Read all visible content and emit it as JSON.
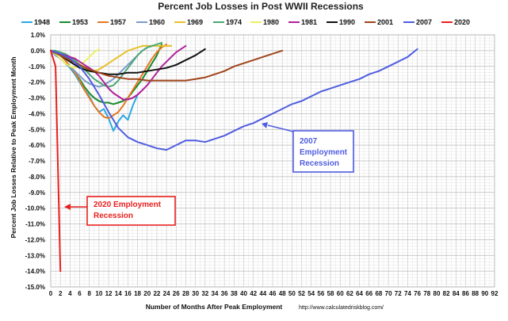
{
  "chart_data": {
    "type": "line",
    "title": "Percent Job Losses in Post WWII Recessions",
    "xlabel": "Number of Months After Peak Employment",
    "ylabel": "Percent Job Losses Relative to Peak Employment Month",
    "source_note": "http://www.calculatedriskblog.com/",
    "xlim": [
      0,
      92
    ],
    "ylim": [
      -15,
      1
    ],
    "x_ticks": [
      "0",
      "2",
      "4",
      "6",
      "8",
      "10",
      "12",
      "14",
      "16",
      "18",
      "20",
      "22",
      "24",
      "26",
      "28",
      "30",
      "32",
      "34",
      "36",
      "38",
      "40",
      "42",
      "44",
      "46",
      "48",
      "50",
      "52",
      "54",
      "56",
      "58",
      "60",
      "62",
      "64",
      "66",
      "68",
      "70",
      "72",
      "74",
      "76",
      "78",
      "80",
      "82",
      "84",
      "86",
      "88",
      "90",
      "92"
    ],
    "y_ticks": [
      {
        "value": 1,
        "label": "1.0%"
      },
      {
        "value": 0,
        "label": "0.0%"
      },
      {
        "value": -1,
        "label": "-1.0%"
      },
      {
        "value": -2,
        "label": "-2.0%"
      },
      {
        "value": -3,
        "label": "-3.0%"
      },
      {
        "value": -4,
        "label": "-4.0%"
      },
      {
        "value": -5,
        "label": "-5.0%"
      },
      {
        "value": -6,
        "label": "-6.0%"
      },
      {
        "value": -7,
        "label": "-7.0%"
      },
      {
        "value": -8,
        "label": "-8.0%"
      },
      {
        "value": -9,
        "label": "-9.0%"
      },
      {
        "value": -10,
        "label": "-10.0%"
      },
      {
        "value": -11,
        "label": "-11.0%"
      },
      {
        "value": -12,
        "label": "-12.0%"
      },
      {
        "value": -13,
        "label": "-13.0%"
      },
      {
        "value": -14,
        "label": "-14.0%"
      },
      {
        "value": -15,
        "label": "-15.0%"
      }
    ],
    "grid": true,
    "legend_position": "top",
    "series": [
      {
        "name": "1948",
        "color": "#2aa8e0",
        "x": [
          0,
          1,
          2,
          3,
          4,
          5,
          6,
          7,
          8,
          9,
          10,
          11,
          12,
          13,
          14,
          15,
          16,
          17,
          18
        ],
        "y": [
          0,
          -0.3,
          -0.5,
          -0.8,
          -1.1,
          -1.5,
          -2.0,
          -2.5,
          -2.9,
          -3.5,
          -3.9,
          -3.7,
          -4.3,
          -5.1,
          -4.5,
          -4.1,
          -4.4,
          -3.5,
          -2.8
        ]
      },
      {
        "name": "1953",
        "color": "#1a8a2e",
        "x": [
          0,
          1,
          2,
          3,
          4,
          5,
          6,
          7,
          8,
          9,
          10,
          11,
          12,
          13,
          14,
          15,
          16,
          17,
          18,
          19,
          20,
          21,
          22,
          23
        ],
        "y": [
          0,
          -0.1,
          -0.3,
          -0.6,
          -1.0,
          -1.4,
          -1.8,
          -2.3,
          -2.7,
          -3.0,
          -3.2,
          -3.3,
          -3.3,
          -3.4,
          -3.3,
          -3.2,
          -3.0,
          -2.6,
          -2.2,
          -1.8,
          -1.3,
          -0.8,
          -0.3,
          0.4
        ]
      },
      {
        "name": "1957",
        "color": "#e87722",
        "x": [
          0,
          1,
          2,
          3,
          4,
          5,
          6,
          7,
          8,
          9,
          10,
          11,
          12,
          13,
          14,
          15,
          16,
          17,
          18,
          19,
          20,
          21,
          22,
          23,
          24
        ],
        "y": [
          0,
          -0.1,
          -0.3,
          -0.6,
          -1.0,
          -1.4,
          -1.9,
          -2.5,
          -3.0,
          -3.5,
          -3.9,
          -4.2,
          -4.3,
          -4.1,
          -3.9,
          -3.5,
          -3.0,
          -2.5,
          -2.0,
          -1.5,
          -1.0,
          -0.5,
          -0.1,
          0.2,
          0.4
        ]
      },
      {
        "name": "1960",
        "color": "#7a9bc8",
        "x": [
          0,
          1,
          2,
          3,
          4,
          5,
          6,
          7,
          8,
          9,
          10,
          11,
          12,
          13,
          14,
          15,
          16,
          17,
          18,
          19,
          20,
          21
        ],
        "y": [
          0,
          -0.3,
          -0.5,
          -0.8,
          -1.0,
          -1.3,
          -1.6,
          -1.9,
          -2.1,
          -2.2,
          -2.3,
          -2.2,
          -2.0,
          -1.8,
          -1.5,
          -1.2,
          -0.9,
          -0.6,
          -0.3,
          0.0,
          0.2,
          0.3
        ]
      },
      {
        "name": "1969",
        "color": "#e8c02a",
        "x": [
          0,
          1,
          2,
          3,
          4,
          5,
          6,
          7,
          8,
          9,
          10,
          11,
          12,
          13,
          14,
          15,
          16,
          17,
          18,
          19,
          20,
          21,
          22,
          23,
          24,
          25
        ],
        "y": [
          0,
          -0.1,
          -0.2,
          -0.3,
          -0.5,
          -0.7,
          -0.9,
          -1.1,
          -1.2,
          -1.3,
          -1.2,
          -1.0,
          -0.8,
          -0.6,
          -0.4,
          -0.2,
          0.0,
          0.1,
          0.2,
          0.3,
          0.3,
          0.3,
          0.3,
          0.3,
          0.3,
          0.3
        ]
      },
      {
        "name": "1974",
        "color": "#4aa873",
        "x": [
          0,
          1,
          2,
          3,
          4,
          5,
          6,
          7,
          8,
          9,
          10,
          11,
          12,
          13,
          14,
          15,
          16,
          17,
          18,
          19,
          20,
          21,
          22,
          23
        ],
        "y": [
          0,
          0,
          -0.1,
          -0.2,
          -0.4,
          -0.6,
          -0.9,
          -1.2,
          -1.5,
          -1.8,
          -2.0,
          -2.2,
          -2.3,
          -2.2,
          -1.9,
          -1.5,
          -1.1,
          -0.7,
          -0.3,
          0.0,
          0.2,
          0.3,
          0.4,
          0.5
        ]
      },
      {
        "name": "1980",
        "color": "#f0f060",
        "x": [
          0,
          1,
          2,
          3,
          4,
          5,
          6,
          7,
          8,
          9,
          10
        ],
        "y": [
          0,
          -0.2,
          -0.5,
          -0.8,
          -1.0,
          -1.1,
          -0.9,
          -0.7,
          -0.4,
          -0.1,
          0.1
        ]
      },
      {
        "name": "1981",
        "color": "#b0209b",
        "x": [
          0,
          1,
          2,
          3,
          4,
          5,
          6,
          7,
          8,
          9,
          10,
          11,
          12,
          13,
          14,
          15,
          16,
          17,
          18,
          19,
          20,
          21,
          22,
          23,
          24,
          25,
          26,
          27,
          28
        ],
        "y": [
          0,
          -0.1,
          -0.2,
          -0.3,
          -0.4,
          -0.5,
          -0.7,
          -0.9,
          -1.1,
          -1.3,
          -1.6,
          -2.0,
          -2.4,
          -2.7,
          -2.9,
          -3.1,
          -3.1,
          -3.0,
          -2.8,
          -2.5,
          -2.2,
          -1.8,
          -1.4,
          -1.0,
          -0.7,
          -0.4,
          -0.1,
          0.1,
          0.3
        ]
      },
      {
        "name": "1990",
        "color": "#111111",
        "x": [
          0,
          2,
          4,
          6,
          8,
          10,
          12,
          14,
          16,
          18,
          20,
          22,
          24,
          26,
          28,
          30,
          32
        ],
        "y": [
          0,
          -0.3,
          -0.7,
          -1.1,
          -1.3,
          -1.4,
          -1.5,
          -1.5,
          -1.4,
          -1.4,
          -1.3,
          -1.2,
          -1.1,
          -0.9,
          -0.6,
          -0.3,
          0.1
        ]
      },
      {
        "name": "2001",
        "color": "#a0441a",
        "x": [
          0,
          2,
          4,
          6,
          8,
          10,
          12,
          14,
          16,
          18,
          20,
          22,
          24,
          26,
          28,
          30,
          32,
          34,
          36,
          38,
          40,
          42,
          44,
          46,
          48
        ],
        "y": [
          0,
          -0.3,
          -0.6,
          -0.9,
          -1.2,
          -1.4,
          -1.6,
          -1.7,
          -1.8,
          -1.8,
          -1.9,
          -1.9,
          -1.9,
          -1.9,
          -1.9,
          -1.8,
          -1.7,
          -1.5,
          -1.3,
          -1.0,
          -0.8,
          -0.6,
          -0.4,
          -0.2,
          0.0
        ]
      },
      {
        "name": "2007",
        "color": "#4f5de0",
        "x": [
          0,
          2,
          4,
          6,
          8,
          10,
          12,
          14,
          16,
          18,
          20,
          22,
          24,
          26,
          28,
          30,
          32,
          34,
          36,
          38,
          40,
          42,
          44,
          46,
          48,
          50,
          52,
          54,
          56,
          58,
          60,
          62,
          64,
          66,
          68,
          70,
          72,
          74,
          76
        ],
        "y": [
          0,
          -0.2,
          -0.5,
          -1.0,
          -1.8,
          -2.8,
          -3.9,
          -4.9,
          -5.5,
          -5.8,
          -6.0,
          -6.2,
          -6.3,
          -6.0,
          -5.7,
          -5.7,
          -5.8,
          -5.6,
          -5.4,
          -5.1,
          -4.8,
          -4.6,
          -4.3,
          -4.0,
          -3.7,
          -3.4,
          -3.2,
          -2.9,
          -2.6,
          -2.4,
          -2.2,
          -2.0,
          -1.8,
          -1.5,
          -1.3,
          -1.0,
          -0.7,
          -0.4,
          0.1
        ]
      },
      {
        "name": "2020",
        "color": "#e8201e",
        "x": [
          0,
          1,
          2
        ],
        "y": [
          0,
          -1.0,
          -14.0
        ]
      }
    ],
    "annotations": [
      {
        "lines": [
          "2020 Employment",
          "Recession"
        ],
        "color": "#e8201e"
      },
      {
        "lines": [
          "2007",
          "Employment",
          "Recession"
        ],
        "color": "#4f5de0"
      }
    ]
  }
}
